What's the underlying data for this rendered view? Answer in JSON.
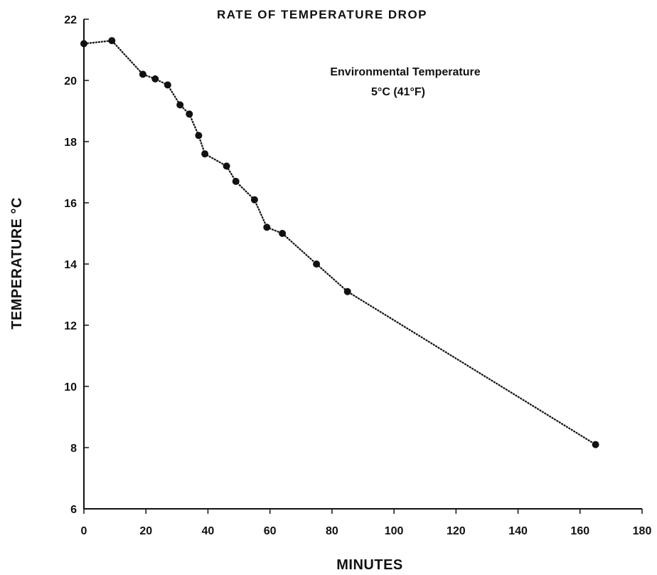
{
  "chart_data": {
    "type": "line",
    "title": "RATE OF TEMPERATURE DROP",
    "annotation": [
      "Environmental Temperature",
      "5°C (41°F)"
    ],
    "xlabel": "MINUTES",
    "ylabel": "TEMPERATURE °C",
    "xlim": [
      0,
      180
    ],
    "ylim": [
      6,
      22
    ],
    "xticks": [
      0,
      20,
      40,
      60,
      80,
      100,
      120,
      140,
      160,
      180
    ],
    "yticks": [
      6,
      8,
      10,
      12,
      14,
      16,
      18,
      20,
      22
    ],
    "grid": false,
    "series": [
      {
        "color": "#111111",
        "points": [
          [
            0,
            21.2
          ],
          [
            9,
            21.3
          ],
          [
            19,
            20.2
          ],
          [
            23,
            20.05
          ],
          [
            27,
            19.85
          ],
          [
            31,
            19.2
          ],
          [
            34,
            18.9
          ],
          [
            37,
            18.2
          ],
          [
            39,
            17.6
          ],
          [
            46,
            17.2
          ],
          [
            49,
            16.7
          ],
          [
            55,
            16.1
          ],
          [
            59,
            15.2
          ],
          [
            64,
            15.0
          ],
          [
            75,
            14.0
          ],
          [
            85,
            13.1
          ],
          [
            165,
            8.1
          ]
        ]
      }
    ]
  }
}
